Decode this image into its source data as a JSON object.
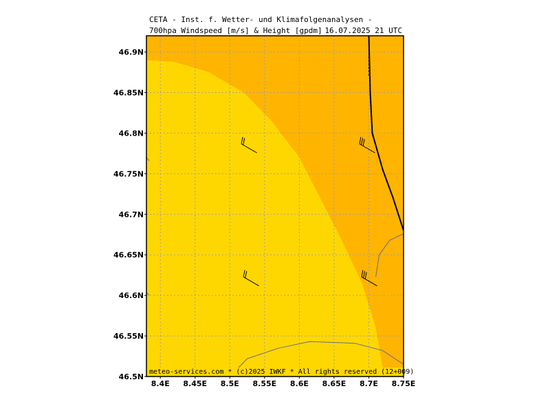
{
  "title": {
    "line1": "CETA - Inst. f. Wetter- und Klimafolgenanalysen -",
    "line2": "700hpa Windspeed [m/s] & Height [gpdm]",
    "datetime": "16.07.2025 21 UTC"
  },
  "footer": {
    "credit": "meteo-services.com * (c)2025 IWKF * All rights reserved (12+009)"
  },
  "colors": {
    "light_band": "#ffd700",
    "dark_band": "#ffb400",
    "grid": "#a0a0a0",
    "border": "#000000",
    "coastline": "#6b6b8a",
    "contour": "#000000",
    "barb": "#000000"
  },
  "map": {
    "lon_range": [
      8.38,
      8.75
    ],
    "lat_range": [
      46.5,
      46.92
    ],
    "x_ticks": [
      {
        "value": 8.4,
        "label": "8.4E"
      },
      {
        "value": 8.45,
        "label": "8.45E"
      },
      {
        "value": 8.5,
        "label": "8.5E"
      },
      {
        "value": 8.55,
        "label": "8.55E"
      },
      {
        "value": 8.6,
        "label": "8.6E"
      },
      {
        "value": 8.65,
        "label": "8.65E"
      },
      {
        "value": 8.7,
        "label": "8.7E"
      },
      {
        "value": 8.75,
        "label": "8.75E"
      }
    ],
    "y_ticks": [
      {
        "value": 46.5,
        "label": "46.5N"
      },
      {
        "value": 46.55,
        "label": "46.55N"
      },
      {
        "value": 46.6,
        "label": "46.6N"
      },
      {
        "value": 46.65,
        "label": "46.65N"
      },
      {
        "value": 46.7,
        "label": "46.7N"
      },
      {
        "value": 46.75,
        "label": "46.75N"
      },
      {
        "value": 46.8,
        "label": "46.8N"
      },
      {
        "value": 46.85,
        "label": "46.85N"
      },
      {
        "value": 46.9,
        "label": "46.9N"
      }
    ],
    "band_boundaries": [
      {
        "name": "inner",
        "points": [
          [
            8.38,
            46.89
          ],
          [
            8.42,
            46.888
          ],
          [
            8.47,
            46.875
          ],
          [
            8.52,
            46.85
          ],
          [
            8.56,
            46.815
          ],
          [
            8.6,
            46.77
          ],
          [
            8.63,
            46.72
          ],
          [
            8.66,
            46.67
          ],
          [
            8.69,
            46.615
          ],
          [
            8.71,
            46.56
          ],
          [
            8.722,
            46.5
          ]
        ]
      },
      {
        "name": "outer",
        "points": [
          [
            8.7,
            46.92
          ],
          [
            8.705,
            46.85
          ],
          [
            8.71,
            46.8
          ],
          [
            8.72,
            46.76
          ],
          [
            8.74,
            46.72
          ],
          [
            8.75,
            46.69
          ]
        ]
      }
    ],
    "contours": [
      {
        "points": [
          [
            8.7,
            46.92
          ],
          [
            8.702,
            46.85
          ],
          [
            8.705,
            46.8
          ],
          [
            8.72,
            46.755
          ],
          [
            8.735,
            46.72
          ],
          [
            8.75,
            46.68
          ]
        ]
      },
      {
        "points": [
          [
            8.7,
            46.92
          ],
          [
            8.7,
            46.87
          ]
        ]
      }
    ],
    "coastlines": [
      {
        "points": [
          [
            8.5,
            46.5
          ],
          [
            8.525,
            46.522
          ],
          [
            8.57,
            46.535
          ],
          [
            8.615,
            46.543
          ],
          [
            8.68,
            46.541
          ],
          [
            8.72,
            46.532
          ],
          [
            8.75,
            46.515
          ]
        ]
      },
      {
        "points": [
          [
            8.71,
            46.623
          ],
          [
            8.715,
            46.65
          ],
          [
            8.73,
            46.668
          ],
          [
            8.75,
            46.676
          ]
        ]
      },
      {
        "points": [
          [
            8.38,
            46.77
          ],
          [
            8.384,
            46.766
          ]
        ]
      },
      {
        "points": [
          [
            8.38,
            46.604
          ],
          [
            8.384,
            46.6
          ]
        ]
      }
    ],
    "wind_barbs": [
      {
        "lon": 8.527,
        "lat": 46.78,
        "direction_deg": 300,
        "speed_kt": 20
      },
      {
        "lon": 8.697,
        "lat": 46.78,
        "direction_deg": 300,
        "speed_kt": 30
      },
      {
        "lon": 8.53,
        "lat": 46.616,
        "direction_deg": 300,
        "speed_kt": 20
      },
      {
        "lon": 8.7,
        "lat": 46.616,
        "direction_deg": 300,
        "speed_kt": 30
      }
    ]
  }
}
